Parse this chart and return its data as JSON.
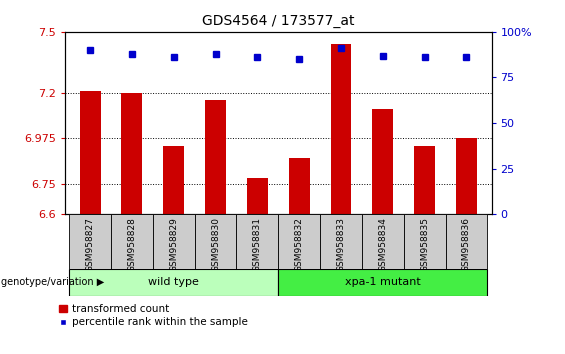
{
  "title": "GDS4564 / 173577_at",
  "samples": [
    "GSM958827",
    "GSM958828",
    "GSM958829",
    "GSM958830",
    "GSM958831",
    "GSM958832",
    "GSM958833",
    "GSM958834",
    "GSM958835",
    "GSM958836"
  ],
  "transformed_count": [
    7.21,
    7.2,
    6.935,
    7.165,
    6.78,
    6.875,
    7.44,
    7.12,
    6.935,
    6.975
  ],
  "percentile_rank": [
    90,
    88,
    86,
    88,
    86,
    85,
    91,
    87,
    86,
    86
  ],
  "ylim_left": [
    6.6,
    7.5
  ],
  "ylim_right": [
    0,
    100
  ],
  "yticks_left": [
    6.6,
    6.75,
    6.975,
    7.2,
    7.5
  ],
  "yticks_right": [
    0,
    25,
    50,
    75,
    100
  ],
  "bar_color": "#cc0000",
  "dot_color": "#0000cc",
  "wild_type_label": "wild type",
  "mutant_label": "xpa-1 mutant",
  "genotype_label": "genotype/variation",
  "legend_bar_label": "transformed count",
  "legend_dot_label": "percentile rank within the sample",
  "tick_label_color_left": "#cc0000",
  "tick_label_color_right": "#0000cc",
  "wild_type_bg": "#bbffbb",
  "mutant_bg": "#44ee44",
  "sample_bg": "#cccccc",
  "n_wild": 5,
  "n_mutant": 5
}
